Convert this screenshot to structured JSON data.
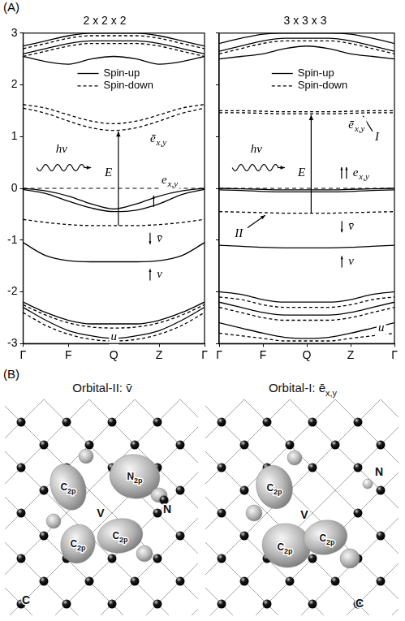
{
  "panel_labels": [
    "(A)",
    "(B)"
  ],
  "chart_data": [
    {
      "type": "line",
      "title": "2 x 2 x 2",
      "x": [
        0,
        0.5,
        1,
        1.5,
        2,
        2.5,
        3,
        3.5,
        4
      ],
      "xlim": [
        0,
        4
      ],
      "xticks": [
        {
          "value": 0,
          "label": "Γ"
        },
        {
          "value": 1,
          "label": "F"
        },
        {
          "value": 2,
          "label": "Q"
        },
        {
          "value": 3,
          "label": "Z"
        },
        {
          "value": 4,
          "label": "Γ"
        }
      ],
      "ylim": [
        -3,
        3
      ],
      "yticks": [
        -3,
        -2,
        -1,
        0,
        1,
        2,
        3
      ],
      "grid": false,
      "legend": "top",
      "hline": 0,
      "series": [
        {
          "name": "Spin-up",
          "color": "#000000",
          "line_style": "solid",
          "bands": [
            [
              0,
              -0.05,
              -0.15,
              -0.3,
              -0.4,
              -0.3,
              -0.15,
              -0.05,
              0
            ],
            [
              -0.02,
              -0.1,
              -0.25,
              -0.38,
              -0.45,
              -0.42,
              -0.3,
              -0.12,
              -0.02
            ],
            [
              -1.05,
              -1.3,
              -1.4,
              -1.42,
              -1.42,
              -1.42,
              -1.4,
              -1.3,
              -1.05
            ],
            [
              -2.2,
              -2.4,
              -2.55,
              -2.62,
              -2.62,
              -2.62,
              -2.55,
              -2.4,
              -2.2
            ],
            [
              -2.3,
              -2.55,
              -2.75,
              -2.85,
              -2.9,
              -2.85,
              -2.75,
              -2.55,
              -2.3
            ],
            [
              2.6,
              2.7,
              2.8,
              2.85,
              2.85,
              2.85,
              2.8,
              2.7,
              2.6
            ],
            [
              2.75,
              2.85,
              2.95,
              3.0,
              3.0,
              3.0,
              2.95,
              2.85,
              2.75
            ],
            [
              2.55,
              2.45,
              2.4,
              2.5,
              2.55,
              2.5,
              2.4,
              2.45,
              2.55
            ]
          ]
        },
        {
          "name": "Spin-down",
          "color": "#000000",
          "line_style": "dashed",
          "bands": [
            [
              1.62,
              1.55,
              1.42,
              1.3,
              1.25,
              1.3,
              1.42,
              1.55,
              1.62
            ],
            [
              1.55,
              1.45,
              1.3,
              1.17,
              1.12,
              1.17,
              1.3,
              1.45,
              1.55
            ],
            [
              -0.6,
              -0.66,
              -0.7,
              -0.72,
              -0.72,
              -0.72,
              -0.7,
              -0.66,
              -0.6
            ],
            [
              -2.25,
              -2.45,
              -2.6,
              -2.68,
              -2.7,
              -2.68,
              -2.6,
              -2.45,
              -2.25
            ],
            [
              -2.4,
              -2.65,
              -2.82,
              -2.92,
              -2.95,
              -2.92,
              -2.82,
              -2.65,
              -2.4
            ],
            [
              2.55,
              2.65,
              2.75,
              2.8,
              2.8,
              2.8,
              2.75,
              2.65,
              2.55
            ],
            [
              2.7,
              2.8,
              2.9,
              2.95,
              2.95,
              2.95,
              2.9,
              2.8,
              2.7
            ]
          ]
        }
      ],
      "annotations": [
        {
          "text": "ē",
          "subscript": "x,y"
        },
        {
          "text": "e",
          "subscript": "x,y"
        },
        {
          "text": "v̄"
        },
        {
          "text": "v"
        },
        {
          "text": "u"
        },
        {
          "text": "hν"
        },
        {
          "text": "E"
        }
      ]
    },
    {
      "type": "line",
      "title": "3 x 3 x 3",
      "x": [
        0,
        0.5,
        1,
        1.5,
        2,
        2.5,
        3,
        3.5,
        4
      ],
      "xlim": [
        0,
        4
      ],
      "xticks": [
        {
          "value": 0,
          "label": "Γ"
        },
        {
          "value": 1,
          "label": "F"
        },
        {
          "value": 2,
          "label": "Q"
        },
        {
          "value": 3,
          "label": "Z"
        },
        {
          "value": 4,
          "label": "Γ"
        }
      ],
      "ylim": [
        -3,
        3
      ],
      "yticks": [
        -3,
        -2,
        -1,
        0,
        1,
        2,
        3
      ],
      "tick_labels": "x",
      "grid": false,
      "legend": "top",
      "hline": 0,
      "series": [
        {
          "name": "Spin-up",
          "color": "#000000",
          "line_style": "solid",
          "bands": [
            [
              0,
              -0.01,
              -0.02,
              -0.03,
              -0.03,
              -0.03,
              -0.02,
              -0.01,
              0
            ],
            [
              -0.03,
              -0.04,
              -0.06,
              -0.07,
              -0.07,
              -0.07,
              -0.06,
              -0.04,
              -0.03
            ],
            [
              -1.1,
              -1.12,
              -1.14,
              -1.15,
              -1.15,
              -1.15,
              -1.14,
              -1.12,
              -1.1
            ],
            [
              -2.0,
              -2.05,
              -2.15,
              -2.2,
              -2.2,
              -2.2,
              -2.15,
              -2.05,
              -2.0
            ],
            [
              -2.2,
              -2.3,
              -2.4,
              -2.45,
              -2.45,
              -2.45,
              -2.4,
              -2.3,
              -2.2
            ],
            [
              -2.6,
              -2.7,
              -2.8,
              -2.88,
              -2.9,
              -2.88,
              -2.8,
              -2.7,
              -2.6
            ],
            [
              2.65,
              2.75,
              2.85,
              2.9,
              2.9,
              2.9,
              2.85,
              2.75,
              2.65
            ],
            [
              2.8,
              2.9,
              2.98,
              3.0,
              3.0,
              3.0,
              2.98,
              2.9,
              2.8
            ],
            [
              2.5,
              2.55,
              2.6,
              2.7,
              2.75,
              2.7,
              2.6,
              2.55,
              2.5
            ]
          ]
        },
        {
          "name": "Spin-down",
          "color": "#000000",
          "line_style": "dashed",
          "bands": [
            [
              1.5,
              1.5,
              1.49,
              1.48,
              1.48,
              1.48,
              1.49,
              1.5,
              1.5
            ],
            [
              1.46,
              1.46,
              1.45,
              1.44,
              1.44,
              1.44,
              1.45,
              1.46,
              1.46
            ],
            [
              -0.45,
              -0.46,
              -0.47,
              -0.48,
              -0.48,
              -0.48,
              -0.47,
              -0.46,
              -0.45
            ],
            [
              -2.1,
              -2.15,
              -2.25,
              -2.3,
              -2.3,
              -2.3,
              -2.25,
              -2.15,
              -2.1
            ],
            [
              -2.3,
              -2.4,
              -2.5,
              -2.55,
              -2.55,
              -2.55,
              -2.5,
              -2.4,
              -2.3
            ],
            [
              -2.8,
              -2.85,
              -2.9,
              -2.95,
              -2.95,
              -2.95,
              -2.9,
              -2.85,
              -2.8
            ],
            [
              2.6,
              2.7,
              2.8,
              2.85,
              2.85,
              2.85,
              2.8,
              2.7,
              2.6
            ]
          ]
        }
      ],
      "annotations": [
        {
          "text": "ē",
          "subscript": "x,y"
        },
        {
          "text": "I"
        },
        {
          "text": "e",
          "subscript": "x,y"
        },
        {
          "text": "v̄"
        },
        {
          "text": "II"
        },
        {
          "text": "v"
        },
        {
          "text": "u"
        },
        {
          "text": "hν"
        },
        {
          "text": "E"
        }
      ]
    }
  ],
  "orbitals": [
    {
      "title": {
        "text": "Orbital-II: v̄"
      },
      "labels": [
        {
          "text": "C",
          "subscript": "2p"
        },
        {
          "text": "N",
          "subscript": "2p"
        },
        {
          "text": "V"
        },
        {
          "text": "N"
        },
        {
          "text": "C",
          "subscript": "2p"
        },
        {
          "text": "C",
          "subscript": "2p"
        },
        {
          "text": "C"
        }
      ]
    },
    {
      "title": {
        "text": "Orbital-I: ē",
        "subscript": "x,y"
      },
      "labels": [
        {
          "text": "C",
          "subscript": "2p"
        },
        {
          "text": "V"
        },
        {
          "text": "N"
        },
        {
          "text": "C",
          "subscript": "2p"
        },
        {
          "text": "C",
          "subscript": "2p"
        },
        {
          "text": "C"
        }
      ]
    }
  ]
}
